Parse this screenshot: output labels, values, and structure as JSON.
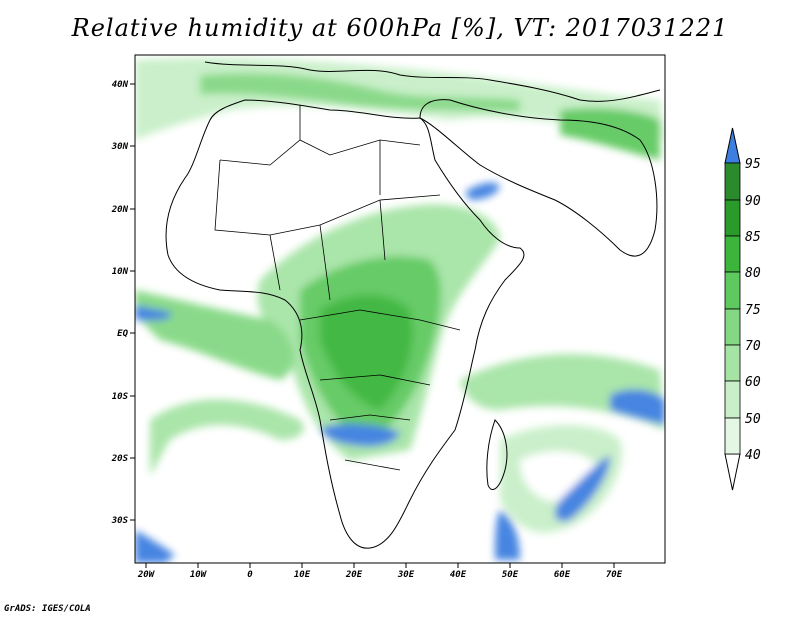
{
  "title": "Relative humidity at 600hPa [%], VT: 2017031221",
  "credit": "GrADS: IGES/COLA",
  "map": {
    "lon_range": [
      -22,
      80
    ],
    "lat_range": [
      -37,
      45
    ],
    "lat_labels": [
      "40N",
      "30N",
      "20N",
      "10N",
      "EQ",
      "10S",
      "20S",
      "30S"
    ],
    "lon_labels": [
      "20W",
      "10W",
      "0",
      "10E",
      "20E",
      "30E",
      "40E",
      "50E",
      "60E",
      "70E"
    ]
  },
  "colorbar": {
    "levels": [
      "40",
      "50",
      "60",
      "70",
      "75",
      "80",
      "85",
      "90",
      "95"
    ],
    "colors": [
      "#ffffff",
      "#e4f7e4",
      "#c8efc8",
      "#a6e4a6",
      "#84d884",
      "#5ec95e",
      "#3bb53b",
      "#2a9a2a",
      "#2b8a2b"
    ],
    "overflow_color": "#3d7fe0"
  }
}
